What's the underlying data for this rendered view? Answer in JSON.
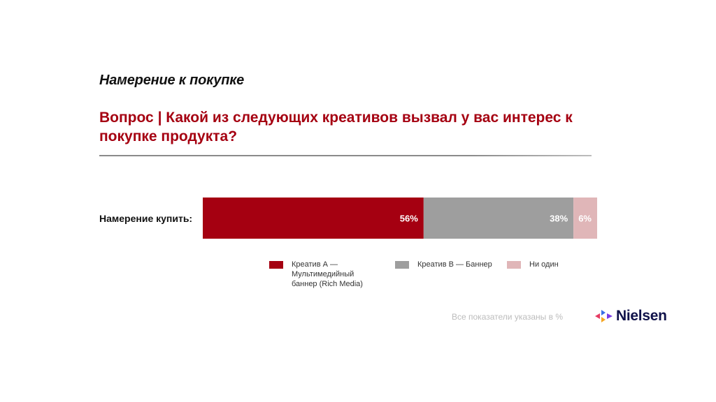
{
  "slide": {
    "title": "Намерение к покупке",
    "question": "Вопрос | Какой из следующих креативов вызвал у вас интерес к покупке продукта?"
  },
  "chart_data": {
    "type": "bar",
    "orientation": "horizontal-stacked",
    "categories": [
      "Намерение купить:"
    ],
    "unit": "%",
    "xlim": [
      0,
      100
    ],
    "grid": false,
    "legend_position": "bottom",
    "series": [
      {
        "name": "Креатив А — Мультимедийный баннер (Rich Media)",
        "values": [
          56
        ],
        "label": "56%",
        "color": "#a50011"
      },
      {
        "name": "Креатив В — Баннер",
        "values": [
          38
        ],
        "label": "38%",
        "color": "#9e9e9e"
      },
      {
        "name": "Ни один",
        "values": [
          6
        ],
        "label": "6%",
        "color": "#e0b6b8"
      }
    ]
  },
  "footer": {
    "note": "Все показатели указаны в %",
    "brand": "Nielsen",
    "logo_icon": "nielsen-logo-icon"
  }
}
